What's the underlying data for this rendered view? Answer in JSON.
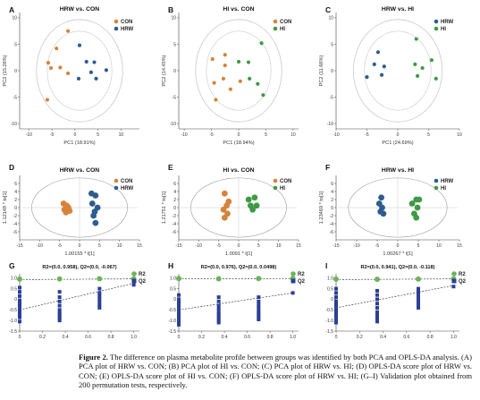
{
  "colors": {
    "orange": "#D6833A",
    "blue": "#2E5C8E",
    "green": "#3E9A45",
    "square": "#2B3F96",
    "circle": "#6CB35A",
    "ellipse": "#C9C9C9"
  },
  "caption": {
    "label": "Figure 2.",
    "text": "The difference on plasma metabolite profile between groups was identified by both PCA and OPLS-DA analysis. (A) PCA plot of HRW vs. CON; (B) PCA plot of HI vs. CON; (C) PCA plot of HRW vs. HI; (D) OPLS-DA score plot of HRW vs. CON; (E) OPLS-DA score plot of HI vs. CON; (F) OPLS-DA score plot of HRW vs. HI; (G–I) Validation plot obtained from 200 permutation tests, respectively."
  },
  "chart_data": [
    {
      "panel": "A",
      "type": "scatter",
      "title": "HRW vs. CON",
      "xlabel": "PC1 (18.91%)",
      "ylabel": "PC2 (15.26%)",
      "xlim": [
        -12,
        14
      ],
      "ylim": [
        -11,
        11
      ],
      "xticks": [
        "-10",
        "-5",
        "0",
        "5",
        "10"
      ],
      "yticks": [
        "10",
        "5",
        "0",
        "-5",
        "-10"
      ],
      "legend_pos": "top-right",
      "series": [
        {
          "name": "CON",
          "color": "orange",
          "x": [
            -1.5,
            -4,
            -5.8,
            -5.2,
            -3.2,
            -1.5,
            -6
          ],
          "y": [
            7.5,
            4.2,
            1.5,
            0.5,
            0.6,
            -0.5,
            -5.5
          ]
        },
        {
          "name": "HRW",
          "color": "blue",
          "x": [
            1,
            2.5,
            4.2,
            3.5,
            0.8,
            6.8,
            4.6
          ],
          "y": [
            4.8,
            1.7,
            1.6,
            -0.3,
            -1.5,
            0.1,
            -1.5
          ]
        }
      ]
    },
    {
      "panel": "B",
      "type": "scatter",
      "title": "HI vs. CON",
      "xlabel": "PC1 (18.94%)",
      "ylabel": "PC2 (14.45%)",
      "xlim": [
        -11,
        11
      ],
      "ylim": [
        -11,
        11
      ],
      "xticks": [
        "-10",
        "-5",
        "0",
        "5",
        "10"
      ],
      "yticks": [
        "10",
        "5",
        "0",
        "-5",
        "-10"
      ],
      "legend_pos": "top-right",
      "series": [
        {
          "name": "CON",
          "color": "orange",
          "x": [
            -2.5,
            -4.8,
            -2.5,
            -2.8,
            0.3,
            -4.5,
            -1.5,
            -4.2
          ],
          "y": [
            3,
            2.2,
            1,
            -1.5,
            -2,
            -2.3,
            -3.5,
            -5.5
          ]
        },
        {
          "name": "HI",
          "color": "green",
          "x": [
            0,
            1.8,
            4.2,
            2,
            3.5,
            4.5
          ],
          "y": [
            1.7,
            1.6,
            5.2,
            -1.5,
            -2.5,
            -4.6
          ]
        }
      ]
    },
    {
      "panel": "C",
      "type": "scatter",
      "title": "HRW vs. HI",
      "xlabel": "PC1 (24.69%)",
      "ylabel": "PC2 (11.66%)",
      "xlim": [
        -10,
        10
      ],
      "ylim": [
        -11,
        11
      ],
      "xticks": [
        "-10",
        "-5",
        "0",
        "5",
        "10"
      ],
      "yticks": [
        "10",
        "5",
        "0",
        "-5",
        "-10"
      ],
      "legend_pos": "top-right",
      "series": [
        {
          "name": "HRW",
          "color": "blue",
          "x": [
            -3.2,
            -3.8,
            -2.2,
            -5,
            -2.6
          ],
          "y": [
            3.5,
            1.2,
            0.8,
            -1.2,
            -0.8
          ]
        },
        {
          "name": "HI",
          "color": "green",
          "x": [
            3,
            5.5,
            2.8,
            4,
            3.2,
            6.2
          ],
          "y": [
            6,
            2,
            1.2,
            0.5,
            -1,
            -1.5
          ]
        }
      ]
    },
    {
      "panel": "D",
      "type": "scatter",
      "title": "HRW vs. CON",
      "xlabel": "1.00155 * t[1]",
      "ylabel": "1.12148 * to[1]",
      "xlim": [
        -15,
        15
      ],
      "ylim": [
        -8,
        8
      ],
      "xticks": [
        "-15",
        "-10",
        "-5",
        "0",
        "5",
        "10",
        "15"
      ],
      "yticks": [
        "6",
        "4",
        "2",
        "0",
        "-2",
        "-4",
        "-6"
      ],
      "legend_pos": "top-right",
      "series": [
        {
          "name": "CON",
          "color": "orange",
          "x": [
            -4,
            -3.2,
            -2.8,
            -3.8,
            -2.5,
            -3.4
          ],
          "y": [
            1,
            0.5,
            0,
            -0.5,
            -0.8,
            -1.2
          ]
        },
        {
          "name": "HRW",
          "color": "blue",
          "x": [
            3,
            4,
            3.2,
            4.5,
            3.8,
            3.5,
            4
          ],
          "y": [
            3.5,
            3,
            1,
            0,
            -1,
            -2,
            -3.8
          ]
        }
      ]
    },
    {
      "panel": "E",
      "type": "scatter",
      "title": "HI vs. CON",
      "xlabel": "1.0091 * t[1]",
      "ylabel": "1.21751 * to[1]",
      "xlim": [
        -15,
        15
      ],
      "ylim": [
        -8,
        8
      ],
      "xticks": [
        "-15",
        "-10",
        "-5",
        "0",
        "5",
        "10",
        "15"
      ],
      "yticks": [
        "6",
        "4",
        "2",
        "0",
        "-2",
        "-4",
        "-6"
      ],
      "legend_pos": "top-right",
      "series": [
        {
          "name": "CON",
          "color": "orange",
          "x": [
            -3.5,
            -2.5,
            -3,
            -3.8,
            -2.8,
            -3.5
          ],
          "y": [
            3.5,
            1.5,
            0.5,
            -0.5,
            -1.5,
            -2.5
          ]
        },
        {
          "name": "HI",
          "color": "green",
          "x": [
            2.5,
            4,
            3,
            4.5,
            3.5
          ],
          "y": [
            2,
            2.5,
            0.5,
            0.5,
            -0.5
          ]
        }
      ]
    },
    {
      "panel": "F",
      "type": "scatter",
      "title": "HRW vs. HI",
      "xlabel": "1.00267 * t[1]",
      "ylabel": "1.23469 * to[1]",
      "xlim": [
        -15,
        15
      ],
      "ylim": [
        -8,
        8
      ],
      "xticks": [
        "-15",
        "-10",
        "-5",
        "0",
        "5",
        "10",
        "15"
      ],
      "yticks": [
        "6",
        "4",
        "2",
        "0",
        "-2",
        "-4",
        "-6"
      ],
      "legend_pos": "top-right",
      "series": [
        {
          "name": "HRW",
          "color": "blue",
          "x": [
            -4,
            -4.5,
            -3.8,
            -4.2,
            -3.5
          ],
          "y": [
            2.5,
            1,
            0,
            -1,
            -1.5
          ]
        },
        {
          "name": "HI",
          "color": "green",
          "x": [
            4.5,
            5.2,
            3.5,
            4.8,
            4,
            4.5
          ],
          "y": [
            2,
            2,
            1,
            0,
            -1.5,
            -2.5
          ]
        }
      ]
    },
    {
      "panel": "G",
      "type": "scatter",
      "title": "R2=(0.0, 0.958), Q2=(0.0, -0.067)",
      "xlim": [
        0,
        1.05
      ],
      "ylim": [
        -1.5,
        1.2
      ],
      "xticks": [
        "0",
        "0.2",
        "0.4",
        "0.6",
        "0.8",
        "1.0"
      ],
      "yticks": [
        "1.0",
        "0.5",
        "0",
        "-0.5",
        "-1.0",
        "-1.5"
      ],
      "legend_pos": "top-right",
      "r2_line": [
        0.93,
        0.96
      ],
      "q2_line": [
        -0.5,
        0.75
      ],
      "series": [
        {
          "name": "R2",
          "color": "circle",
          "x": [
            0,
            0.35,
            0.7,
            1.0
          ],
          "y": [
            0.95,
            0.96,
            0.97,
            0.96
          ]
        },
        {
          "name": "Q2",
          "color": "square",
          "x": [
            0,
            0,
            0,
            0,
            0,
            0,
            0,
            0,
            0,
            0,
            0,
            0.35,
            0.35,
            0.35,
            0.35,
            0.35,
            0.35,
            0.35,
            0.35,
            0.35,
            0.35,
            0.7,
            0.7,
            0.7,
            0.7,
            0.7,
            0.7,
            0.7,
            1.0
          ],
          "y": [
            0.55,
            0.35,
            0.15,
            -0.05,
            -0.2,
            -0.35,
            -0.5,
            -0.6,
            -0.7,
            -0.85,
            -1.05,
            0.35,
            0.1,
            -0.1,
            -0.3,
            -0.5,
            -0.6,
            -0.7,
            -0.8,
            -0.9,
            -1.0,
            0.5,
            0.3,
            0.15,
            0,
            -0.15,
            -0.3,
            -0.4,
            0.68
          ]
        }
      ]
    },
    {
      "panel": "H",
      "type": "scatter",
      "title": "R2=(0.0, 0.976), Q2=(0.0, 0.0498)",
      "xlim": [
        0,
        1.05
      ],
      "ylim": [
        -1.5,
        1.2
      ],
      "xticks": [
        "0",
        "0.2",
        "0.4",
        "0.6",
        "0.8",
        "1.0"
      ],
      "yticks": [
        "1.0",
        "0.5",
        "0",
        "-0.5",
        "-1.0",
        "-1.5"
      ],
      "legend_pos": "top-right",
      "r2_line": [
        0.97,
        0.98
      ],
      "q2_line": [
        -0.5,
        0.3
      ],
      "series": [
        {
          "name": "R2",
          "color": "circle",
          "x": [
            0,
            0.35,
            0.7,
            1.0
          ],
          "y": [
            0.98,
            0.97,
            0.98,
            0.98
          ]
        },
        {
          "name": "Q2",
          "color": "square",
          "x": [
            0,
            0,
            0,
            0,
            0,
            0,
            0,
            0,
            0,
            0,
            0,
            0,
            0.35,
            0.35,
            0.35,
            0.35,
            0.35,
            0.35,
            0.35,
            0.35,
            0.35,
            0.35,
            0.7,
            0.7,
            0.7,
            0.7,
            0.7,
            0.7,
            0.7,
            0.7,
            0.7,
            1.0
          ],
          "y": [
            0.2,
            0,
            -0.15,
            -0.3,
            -0.45,
            -0.55,
            -0.65,
            -0.8,
            -0.9,
            -1.0,
            -1.1,
            -1.2,
            0.1,
            -0.1,
            -0.3,
            -0.45,
            -0.6,
            -0.7,
            -0.8,
            -0.9,
            -1.0,
            -1.1,
            0.1,
            -0.1,
            -0.25,
            -0.4,
            -0.55,
            -0.65,
            -0.75,
            -0.85,
            -0.95,
            0.3
          ]
        }
      ]
    },
    {
      "panel": "I",
      "type": "scatter",
      "title": "R2=(0.0, 0.941), Q2=(0.0, -0.118)",
      "xlim": [
        0,
        1.05
      ],
      "ylim": [
        -1.5,
        1.2
      ],
      "xticks": [
        "0",
        "0.2",
        "0.4",
        "0.6",
        "0.8",
        "1.0"
      ],
      "yticks": [
        "1.0",
        "0.5",
        "0",
        "-0.5",
        "-1.0",
        "-1.5"
      ],
      "legend_pos": "top-right",
      "r2_line": [
        0.93,
        0.96
      ],
      "q2_line": [
        -0.4,
        0.65
      ],
      "series": [
        {
          "name": "R2",
          "color": "circle",
          "x": [
            0,
            0.35,
            0.7,
            1.0
          ],
          "y": [
            0.95,
            0.94,
            0.95,
            0.96
          ]
        },
        {
          "name": "Q2",
          "color": "square",
          "x": [
            0,
            0,
            0,
            0,
            0,
            0,
            0,
            0,
            0,
            0,
            0,
            0.35,
            0.35,
            0.35,
            0.35,
            0.35,
            0.35,
            0.35,
            0.35,
            0.35,
            0.7,
            0.7,
            0.7,
            0.7,
            0.7,
            0.7,
            0.7,
            1.0
          ],
          "y": [
            0.5,
            0.3,
            0.1,
            -0.1,
            -0.25,
            -0.4,
            -0.55,
            -0.7,
            -0.85,
            -1.0,
            -1.1,
            0.4,
            0.2,
            0,
            -0.2,
            -0.4,
            -0.6,
            -0.75,
            -0.9,
            -1.05,
            0.5,
            0.35,
            0.2,
            0.05,
            -0.1,
            -0.25,
            -0.4,
            0.6
          ]
        }
      ]
    }
  ]
}
